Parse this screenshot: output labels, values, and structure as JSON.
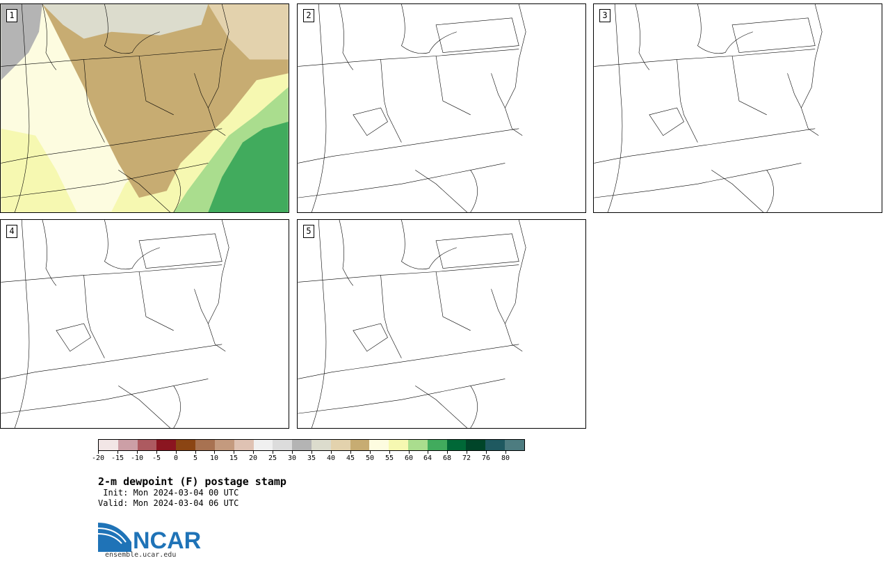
{
  "panels": [
    {
      "number": "1",
      "has_data": true
    },
    {
      "number": "2",
      "has_data": false
    },
    {
      "number": "3",
      "has_data": false
    },
    {
      "number": "4",
      "has_data": false
    },
    {
      "number": "5",
      "has_data": false
    }
  ],
  "colorbar": {
    "tick_labels": [
      "-20",
      "-15",
      "-10",
      "-5",
      "0",
      "5",
      "10",
      "15",
      "20",
      "25",
      "30",
      "35",
      "40",
      "45",
      "50",
      "55",
      "60",
      "64",
      "68",
      "72",
      "76",
      "80"
    ],
    "colors": [
      "#f2e6e6",
      "#cc9fa6",
      "#ad5a60",
      "#8b1520",
      "#8b4513",
      "#a87251",
      "#c49a7e",
      "#dfc2b3",
      "#f0f0f0",
      "#dcdcdc",
      "#b4b4b4",
      "#dcdccd",
      "#e3d2ad",
      "#c7ac72",
      "#fdfce0",
      "#f6f8b1",
      "#aadd8e",
      "#41ab5d",
      "#006837",
      "#004529",
      "#1f5960",
      "#4d7c80"
    ]
  },
  "title": "2-m dewpoint (F) postage stamp",
  "init": " Init: Mon 2024-03-04 00 UTC",
  "valid": "Valid: Mon 2024-03-04 06 UTC",
  "logo": {
    "text": "NCAR",
    "url": "ensemble.ucar.edu"
  },
  "map_colors": {
    "dry_brown": "#c7ac72",
    "light_tan": "#e3d2ad",
    "cream": "#fdfce0",
    "light_yellow": "#f6f8b1",
    "light_green": "#aadd8e",
    "green": "#41ab5d",
    "light_gray": "#dcdccd",
    "gray": "#b4b4b4",
    "outline": "#000000"
  }
}
